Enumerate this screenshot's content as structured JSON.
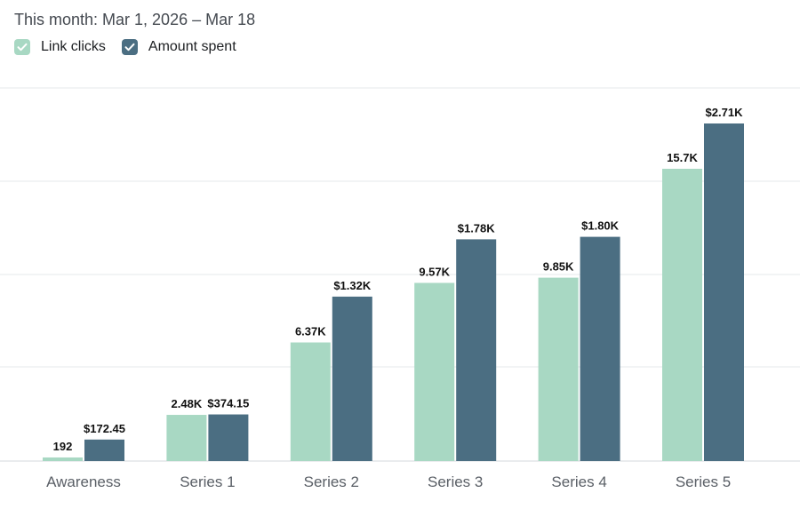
{
  "header": {
    "date_range": "This month: Mar 1, 2026 – Mar 18"
  },
  "legend": {
    "items": [
      {
        "label": "Link clicks",
        "color": "#a8d8c3",
        "checked": true,
        "icon": "check-icon"
      },
      {
        "label": "Amount spent",
        "color": "#4b6e82",
        "checked": true,
        "icon": "check-icon"
      }
    ]
  },
  "chart_data": {
    "type": "bar",
    "categories": [
      "Awareness",
      "Series 1",
      "Series 2",
      "Series 3",
      "Series 4",
      "Series 5"
    ],
    "series": [
      {
        "name": "Link clicks",
        "color": "#a8d8c3",
        "values": [
          192,
          2480,
          6370,
          9570,
          9850,
          15700
        ],
        "labels": [
          "192",
          "2.48K",
          "6.37K",
          "9.57K",
          "9.85K",
          "15.7K"
        ]
      },
      {
        "name": "Amount spent",
        "color": "#4b6e82",
        "values": [
          172.45,
          374.15,
          1320,
          1780,
          1800,
          2710
        ],
        "labels": [
          "$172.45",
          "$374.15",
          "$1.32K",
          "$1.78K",
          "$1.80K",
          "$2.71K"
        ]
      }
    ],
    "grid": true,
    "legend_position": "top-left"
  }
}
